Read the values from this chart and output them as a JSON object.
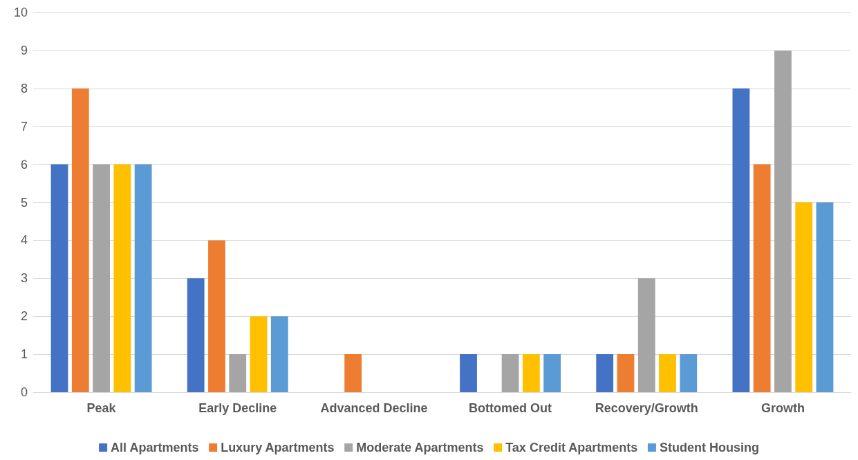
{
  "chart_data": {
    "type": "bar",
    "categories": [
      "Peak",
      "Early Decline",
      "Advanced Decline",
      "Bottomed Out",
      "Recovery/Growth",
      "Growth"
    ],
    "series": [
      {
        "name": "All Apartments",
        "color": "#4472c4",
        "values": [
          6,
          3,
          0,
          1,
          1,
          8
        ]
      },
      {
        "name": "Luxury Apartments",
        "color": "#ed7d31",
        "values": [
          8,
          4,
          1,
          0,
          1,
          6
        ]
      },
      {
        "name": "Moderate Apartments",
        "color": "#a5a5a5",
        "values": [
          6,
          1,
          0,
          1,
          3,
          9
        ]
      },
      {
        "name": "Tax Credit Apartments",
        "color": "#ffc000",
        "values": [
          6,
          2,
          0,
          1,
          1,
          5
        ]
      },
      {
        "name": "Student Housing",
        "color": "#5b9bd5",
        "values": [
          6,
          2,
          0,
          1,
          1,
          5
        ]
      }
    ],
    "ylim": [
      0,
      10
    ],
    "yticks": [
      0,
      1,
      2,
      3,
      4,
      5,
      6,
      7,
      8,
      9,
      10
    ],
    "grid": "y",
    "legend": "bottom"
  }
}
